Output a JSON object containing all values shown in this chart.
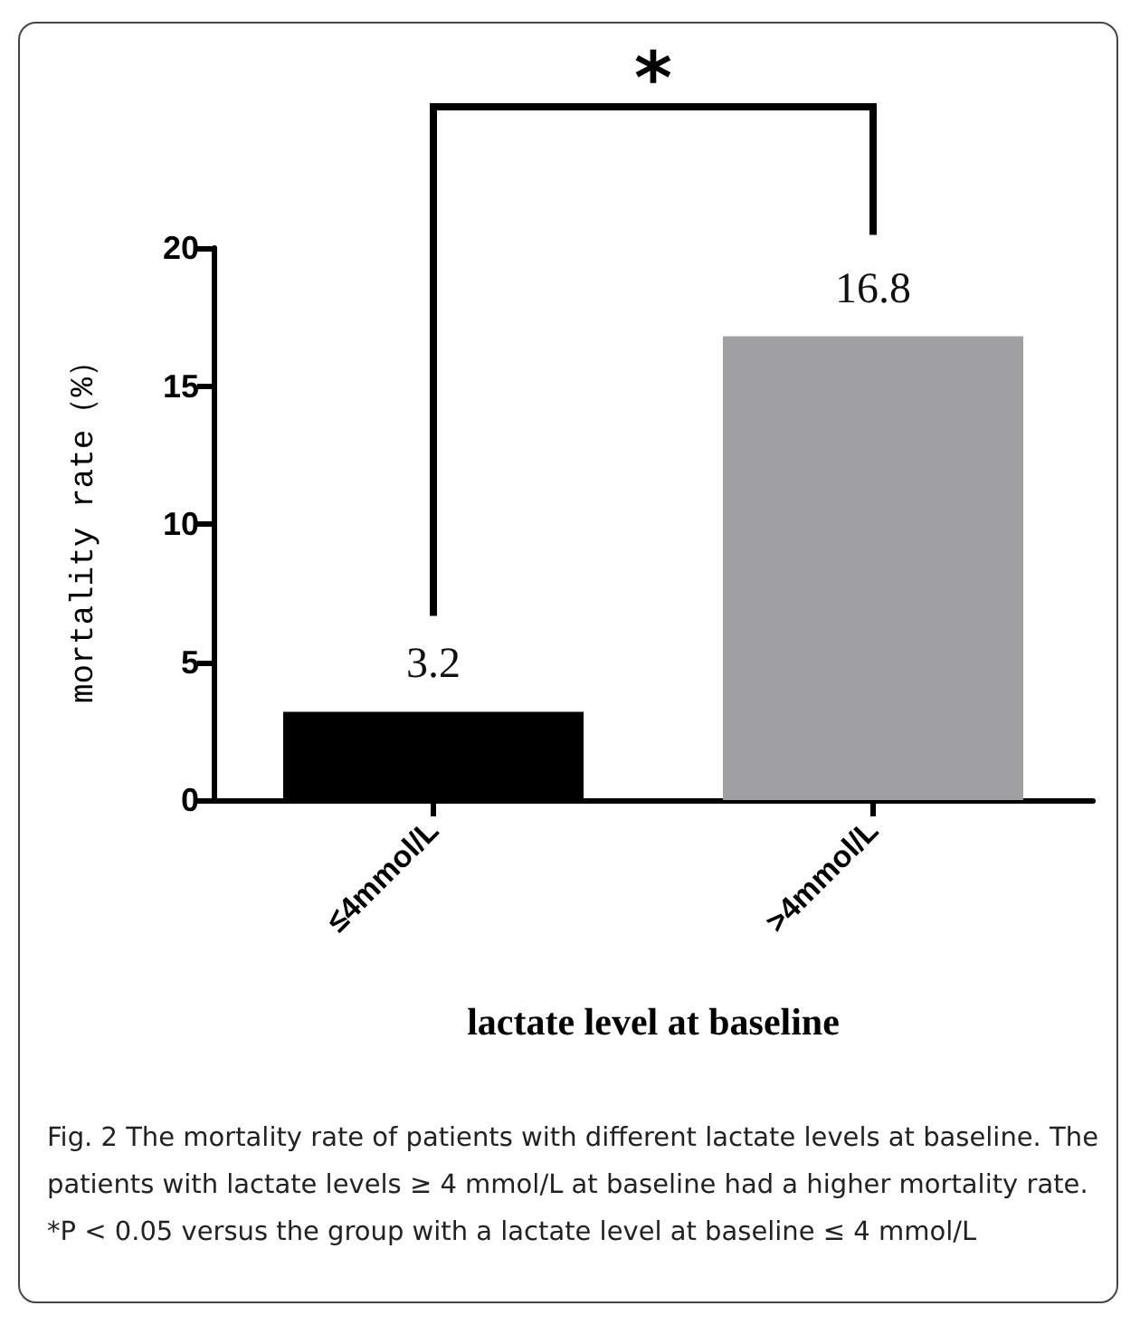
{
  "chart_data": {
    "type": "bar",
    "categories": [
      "≤4mmol/L",
      ">4mmol/L"
    ],
    "values": [
      3.2,
      16.8
    ],
    "colors": [
      "#000000",
      "#a09fa3"
    ],
    "xlabel": "lactate level at baseline",
    "ylabel": "mortality rate（%）",
    "ylim": [
      0,
      20
    ],
    "yticks": [
      0,
      5,
      10,
      15,
      20
    ],
    "data_labels": true,
    "grid": false,
    "annotations": [
      "*",
      "Fig. 2  The mortality rate of patients with different lactate levels at baseline. The patients with lactate levels ≥ 4 mmol/L at baseline had a higher mortality rate. *P < 0.05 versus the group with a lactate level at baseline ≤ 4 mmol/L"
    ]
  }
}
